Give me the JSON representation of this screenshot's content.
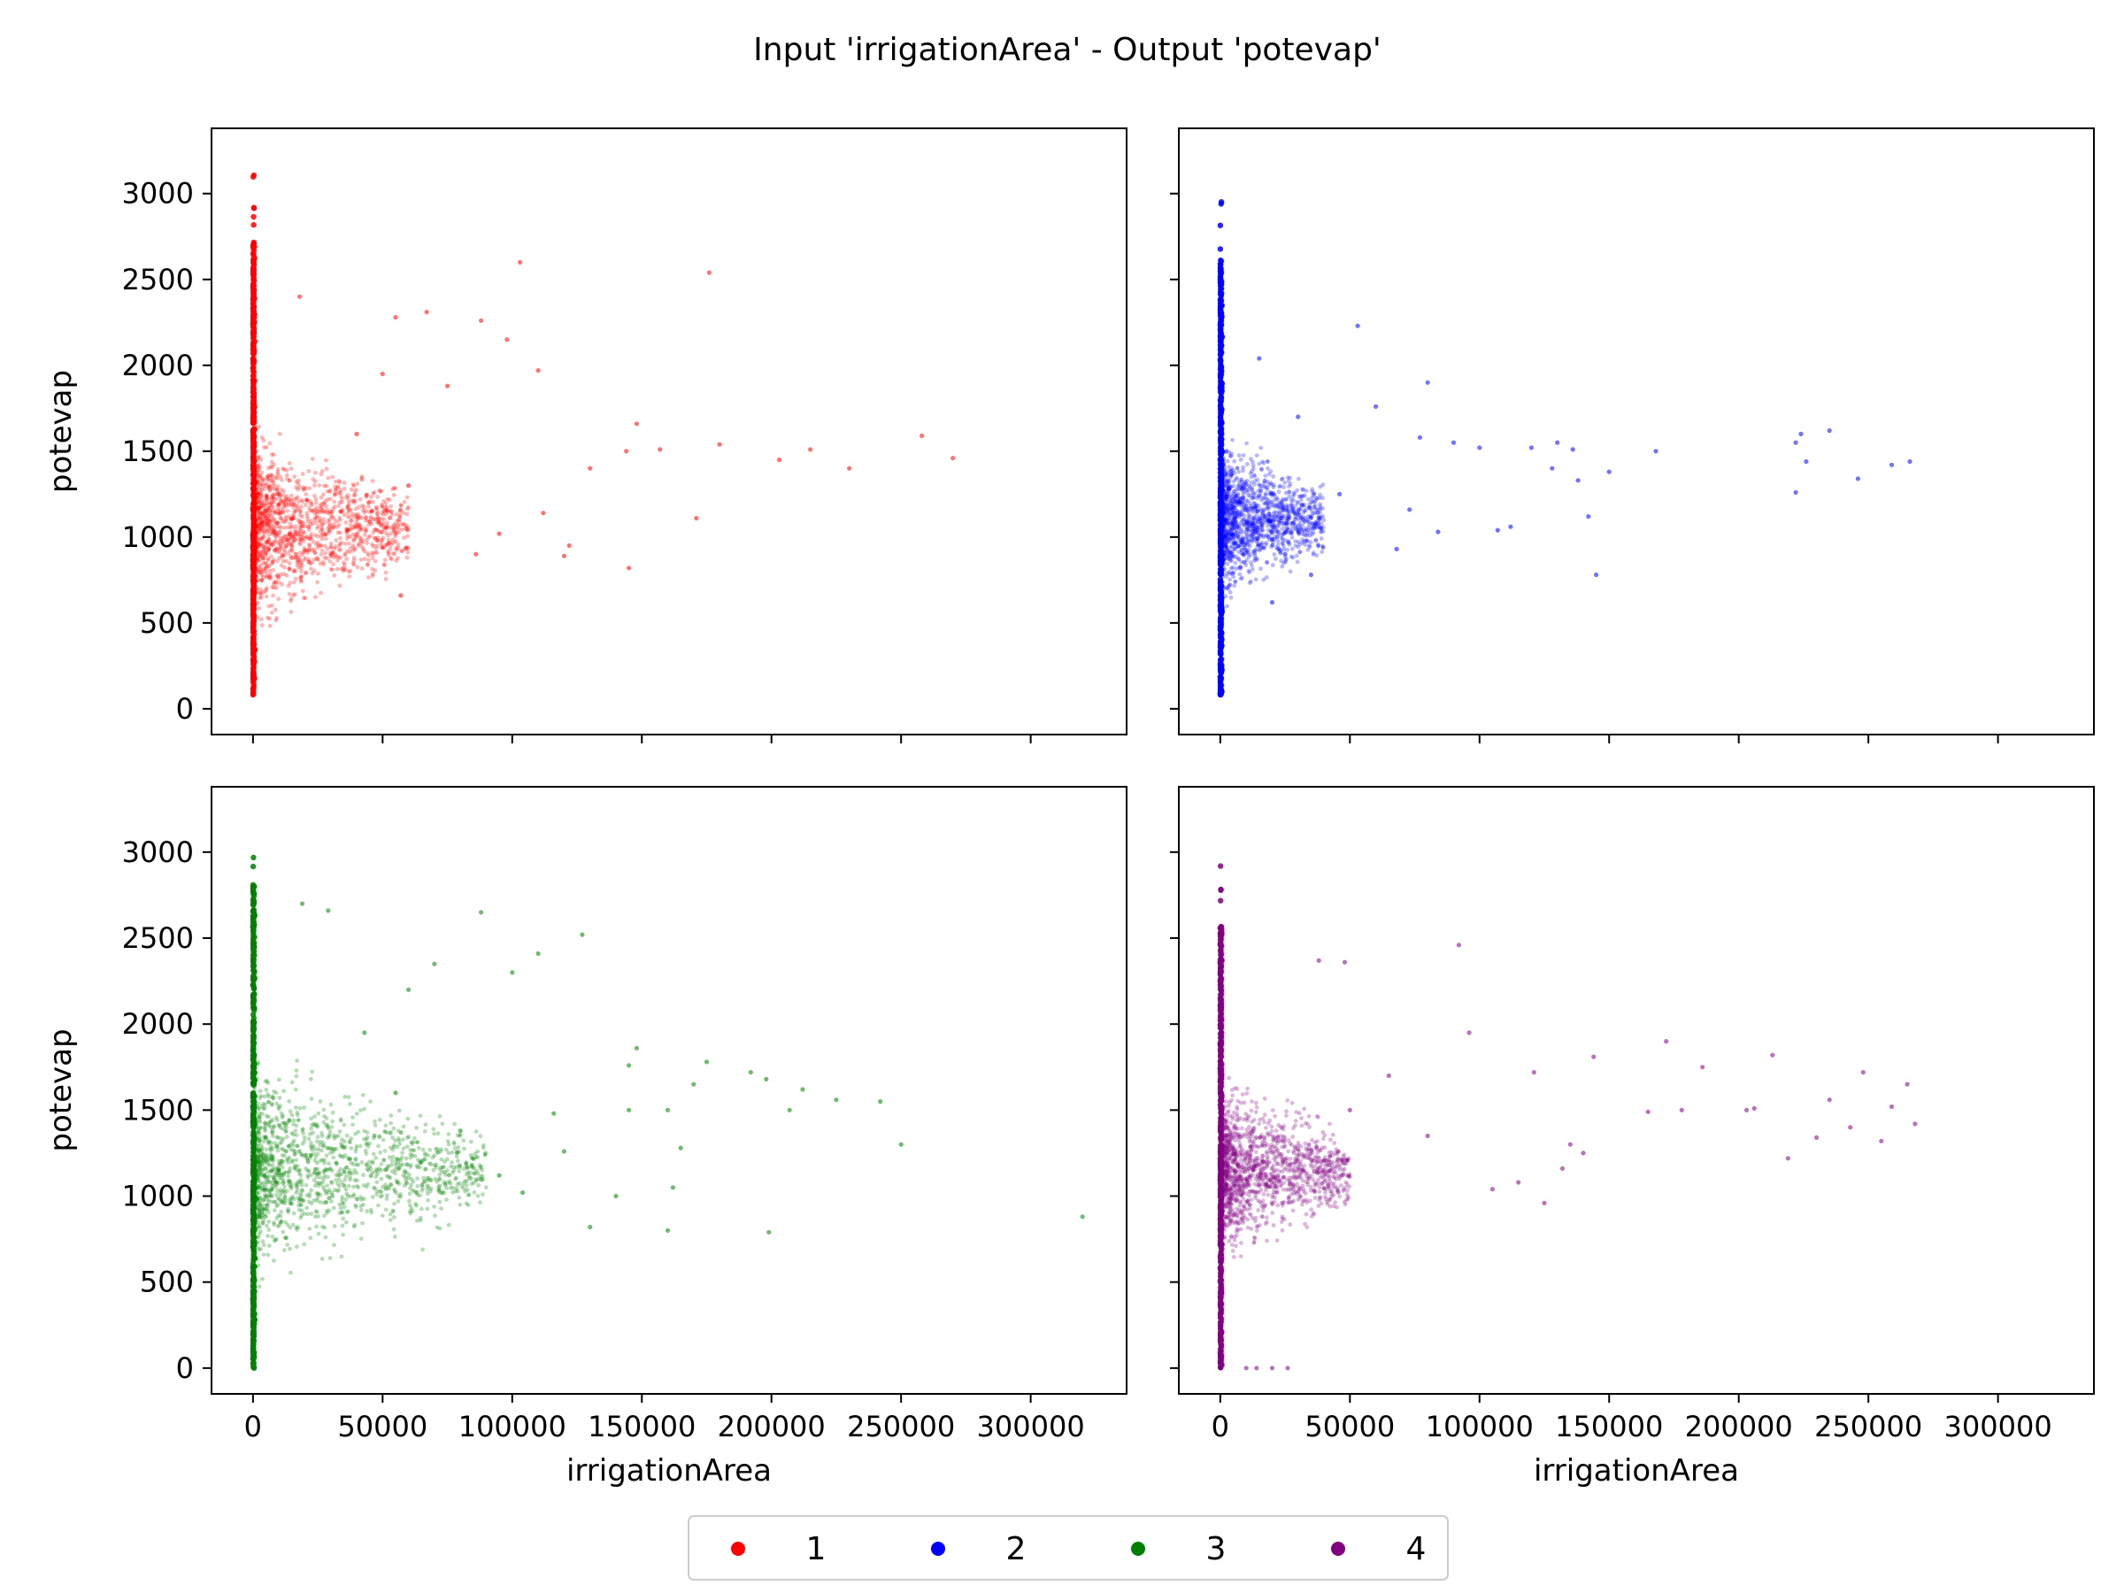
{
  "figure": {
    "title": "Input 'irrigationArea' - Output 'potevap'"
  },
  "chart_data": {
    "type": "scatter",
    "layout": "2x2 grid, shared x and y axes",
    "xlabel": "irrigationArea",
    "ylabel": "potevap",
    "xlim": [
      -16000,
      337000
    ],
    "ylim": [
      -150,
      3380
    ],
    "x_ticks": [
      0,
      50000,
      100000,
      150000,
      200000,
      250000,
      300000
    ],
    "x_tick_labels": [
      "0",
      "50000",
      "100000",
      "150000",
      "200000",
      "250000",
      "300000"
    ],
    "y_ticks": [
      0,
      500,
      1000,
      1500,
      2000,
      2500,
      3000
    ],
    "y_tick_labels": [
      "0",
      "500",
      "1000",
      "1500",
      "2000",
      "2500",
      "3000"
    ],
    "grid": false,
    "legend": {
      "placement": "bottom-center",
      "entries": [
        {
          "label": "1",
          "color": "#ff0000"
        },
        {
          "label": "2",
          "color": "#0000ff"
        },
        {
          "label": "3",
          "color": "#008000"
        },
        {
          "label": "4",
          "color": "#800080"
        }
      ]
    },
    "series": [
      {
        "name": "1",
        "color": "#ff0000",
        "panel": "top-left",
        "x_zero_column_range": [
          80,
          3110
        ],
        "dense_cloud": {
          "x_max": 60000,
          "y_center": 1050,
          "y_spread": 1400
        },
        "points": [
          [
            103000,
            2600
          ],
          [
            176000,
            2540
          ],
          [
            67000,
            2310
          ],
          [
            55000,
            2280
          ],
          [
            88000,
            2260
          ],
          [
            18000,
            2400
          ],
          [
            98000,
            2150
          ],
          [
            110000,
            1970
          ],
          [
            75000,
            1880
          ],
          [
            148000,
            1660
          ],
          [
            180000,
            1540
          ],
          [
            157000,
            1510
          ],
          [
            144000,
            1500
          ],
          [
            203000,
            1450
          ],
          [
            215000,
            1510
          ],
          [
            230000,
            1400
          ],
          [
            258000,
            1590
          ],
          [
            270000,
            1460
          ],
          [
            171000,
            1110
          ],
          [
            145000,
            820
          ],
          [
            120000,
            890
          ],
          [
            122000,
            950
          ],
          [
            57000,
            660
          ],
          [
            95000,
            1020
          ],
          [
            112000,
            1140
          ],
          [
            86000,
            900
          ],
          [
            60000,
            1300
          ],
          [
            130000,
            1400
          ],
          [
            40000,
            1600
          ],
          [
            50000,
            1950
          ]
        ]
      },
      {
        "name": "2",
        "color": "#0000ff",
        "panel": "top-right",
        "x_zero_column_range": [
          80,
          2990
        ],
        "dense_cloud": {
          "x_max": 40000,
          "y_center": 1100,
          "y_spread": 1200
        },
        "points": [
          [
            53000,
            2230
          ],
          [
            15000,
            2040
          ],
          [
            80000,
            1900
          ],
          [
            60000,
            1760
          ],
          [
            77000,
            1580
          ],
          [
            90000,
            1550
          ],
          [
            100000,
            1520
          ],
          [
            120000,
            1520
          ],
          [
            130000,
            1550
          ],
          [
            136000,
            1510
          ],
          [
            128000,
            1400
          ],
          [
            138000,
            1330
          ],
          [
            150000,
            1380
          ],
          [
            168000,
            1500
          ],
          [
            222000,
            1550
          ],
          [
            222000,
            1260
          ],
          [
            224000,
            1600
          ],
          [
            226000,
            1440
          ],
          [
            235000,
            1620
          ],
          [
            246000,
            1340
          ],
          [
            259000,
            1420
          ],
          [
            266000,
            1440
          ],
          [
            142000,
            1120
          ],
          [
            145000,
            780
          ],
          [
            112000,
            1060
          ],
          [
            107000,
            1040
          ],
          [
            84000,
            1030
          ],
          [
            73000,
            1160
          ],
          [
            68000,
            930
          ],
          [
            46000,
            1250
          ],
          [
            30000,
            1700
          ],
          [
            25000,
            900
          ],
          [
            35000,
            780
          ],
          [
            20000,
            620
          ]
        ]
      },
      {
        "name": "3",
        "color": "#008000",
        "panel": "bottom-left",
        "x_zero_column_range": [
          0,
          3220
        ],
        "dense_cloud": {
          "x_max": 90000,
          "y_center": 1150,
          "y_spread": 1500
        },
        "points": [
          [
            19000,
            2700
          ],
          [
            29000,
            2660
          ],
          [
            88000,
            2650
          ],
          [
            127000,
            2520
          ],
          [
            110000,
            2410
          ],
          [
            100000,
            2300
          ],
          [
            70000,
            2350
          ],
          [
            60000,
            2200
          ],
          [
            148000,
            1860
          ],
          [
            145000,
            1760
          ],
          [
            175000,
            1780
          ],
          [
            170000,
            1650
          ],
          [
            160000,
            1500
          ],
          [
            145000,
            1500
          ],
          [
            192000,
            1720
          ],
          [
            198000,
            1680
          ],
          [
            212000,
            1620
          ],
          [
            207000,
            1500
          ],
          [
            225000,
            1560
          ],
          [
            242000,
            1550
          ],
          [
            250000,
            1300
          ],
          [
            199000,
            790
          ],
          [
            320000,
            880
          ],
          [
            165000,
            1280
          ],
          [
            162000,
            1050
          ],
          [
            160000,
            800
          ],
          [
            140000,
            1000
          ],
          [
            130000,
            820
          ],
          [
            120000,
            1260
          ],
          [
            104000,
            1020
          ],
          [
            116000,
            1480
          ],
          [
            95000,
            1120
          ],
          [
            80000,
            1380
          ],
          [
            55000,
            1600
          ],
          [
            43000,
            1950
          ]
        ]
      },
      {
        "name": "4",
        "color": "#800080",
        "panel": "bottom-right",
        "x_zero_column_range": [
          0,
          2950
        ],
        "dense_cloud": {
          "x_max": 50000,
          "y_center": 1150,
          "y_spread": 1300
        },
        "points": [
          [
            92000,
            2460
          ],
          [
            96000,
            1950
          ],
          [
            38000,
            2370
          ],
          [
            48000,
            2360
          ],
          [
            144000,
            1810
          ],
          [
            121000,
            1720
          ],
          [
            172000,
            1900
          ],
          [
            186000,
            1750
          ],
          [
            213000,
            1820
          ],
          [
            206000,
            1510
          ],
          [
            203000,
            1500
          ],
          [
            235000,
            1560
          ],
          [
            243000,
            1400
          ],
          [
            248000,
            1720
          ],
          [
            259000,
            1520
          ],
          [
            265000,
            1650
          ],
          [
            268000,
            1420
          ],
          [
            255000,
            1320
          ],
          [
            230000,
            1340
          ],
          [
            219000,
            1220
          ],
          [
            178000,
            1500
          ],
          [
            165000,
            1490
          ],
          [
            140000,
            1250
          ],
          [
            135000,
            1300
          ],
          [
            132000,
            1160
          ],
          [
            125000,
            960
          ],
          [
            115000,
            1080
          ],
          [
            105000,
            1040
          ],
          [
            80000,
            1350
          ],
          [
            65000,
            1700
          ],
          [
            50000,
            1500
          ],
          [
            14000,
            0
          ],
          [
            20000,
            0
          ],
          [
            26000,
            0
          ],
          [
            10000,
            0
          ]
        ]
      }
    ]
  }
}
